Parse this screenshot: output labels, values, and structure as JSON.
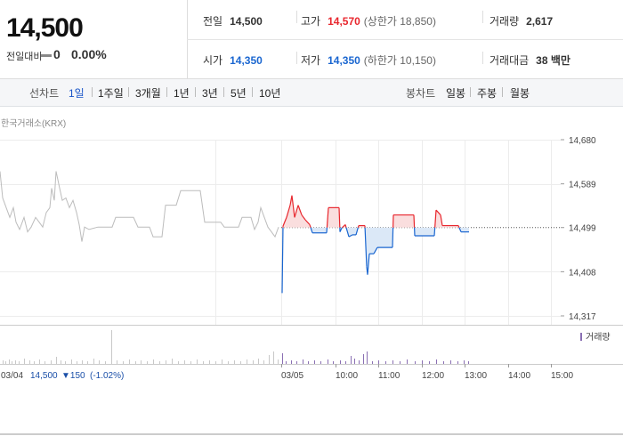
{
  "header": {
    "price": "14,500",
    "change_label": "전일대비",
    "change_value": "0",
    "change_rate": "0.00%",
    "prev_close_label": "전일",
    "prev_close": "14,500",
    "high_label": "고가",
    "high": "14,570",
    "upper_limit": "(상한가 18,850)",
    "volume_label": "거래량",
    "volume": "2,617",
    "open_label": "시가",
    "open": "14,350",
    "low_label": "저가",
    "low": "14,350",
    "lower_limit": "(하한가 10,150)",
    "amount_label": "거래대금",
    "amount": "38 백만"
  },
  "tabs": {
    "line_label": "선차트",
    "line": [
      "1일",
      "1주일",
      "3개월",
      "1년",
      "3년",
      "5년",
      "10년"
    ],
    "candle_label": "봉차트",
    "candle": [
      "일봉",
      "주봉",
      "월봉"
    ],
    "selected": "1일"
  },
  "chart_data": {
    "type": "line",
    "source_label": "한국거래소(KRX)",
    "yticks": [
      "14,680",
      "14,589",
      "14,499",
      "14,408",
      "14,317"
    ],
    "ylim": [
      14317,
      14680
    ],
    "prev_close": 14499,
    "volume_legend": "거래량",
    "x_ticks": [
      "03/05",
      "10:00",
      "11:00",
      "12:00",
      "13:00",
      "14:00",
      "15:00"
    ],
    "footer_date": "03/04",
    "footer_price": "14,500",
    "footer_change": "▼150",
    "footer_rate": "(-1.02%)",
    "colors": {
      "prev_day": "#bcbcbc",
      "up": "#e8262d",
      "down": "#1a66d0",
      "up_fill": "#fadede",
      "down_fill": "#dbe8f7"
    },
    "prev_day_series": [
      [
        0,
        14615
      ],
      [
        3,
        14560
      ],
      [
        7,
        14540
      ],
      [
        11,
        14520
      ],
      [
        15,
        14540
      ],
      [
        18,
        14510
      ],
      [
        22,
        14495
      ],
      [
        27,
        14520
      ],
      [
        31,
        14490
      ],
      [
        35,
        14500
      ],
      [
        40,
        14520
      ],
      [
        44,
        14510
      ],
      [
        48,
        14500
      ],
      [
        52,
        14530
      ],
      [
        56,
        14540
      ],
      [
        58,
        14580
      ],
      [
        61,
        14555
      ],
      [
        63,
        14615
      ],
      [
        67,
        14580
      ],
      [
        70,
        14555
      ],
      [
        74,
        14560
      ],
      [
        78,
        14540
      ],
      [
        82,
        14555
      ],
      [
        86,
        14530
      ],
      [
        89,
        14505
      ],
      [
        92,
        14470
      ],
      [
        95,
        14500
      ],
      [
        100,
        14495
      ],
      [
        110,
        14500
      ],
      [
        126,
        14500
      ],
      [
        130,
        14520
      ],
      [
        150,
        14520
      ],
      [
        155,
        14500
      ],
      [
        168,
        14500
      ],
      [
        172,
        14480
      ],
      [
        182,
        14480
      ],
      [
        186,
        14545
      ],
      [
        198,
        14545
      ],
      [
        203,
        14575
      ],
      [
        225,
        14575
      ],
      [
        230,
        14510
      ],
      [
        248,
        14510
      ],
      [
        252,
        14500
      ],
      [
        268,
        14500
      ],
      [
        272,
        14520
      ],
      [
        282,
        14520
      ],
      [
        286,
        14495
      ],
      [
        290,
        14510
      ],
      [
        293,
        14540
      ],
      [
        297,
        14520
      ],
      [
        301,
        14500
      ],
      [
        305,
        14490
      ],
      [
        309,
        14480
      ],
      [
        313,
        14500
      ]
    ],
    "today_series": [
      [
        317,
        14364
      ],
      [
        318,
        14502
      ],
      [
        322,
        14520
      ],
      [
        326,
        14545
      ],
      [
        328,
        14565
      ],
      [
        331,
        14520
      ],
      [
        335,
        14545
      ],
      [
        339,
        14525
      ],
      [
        343,
        14515
      ],
      [
        348,
        14505
      ],
      [
        351,
        14488
      ],
      [
        367,
        14488
      ],
      [
        369,
        14540
      ],
      [
        381,
        14540
      ],
      [
        382,
        14490
      ],
      [
        384,
        14498
      ],
      [
        388,
        14505
      ],
      [
        392,
        14480
      ],
      [
        396,
        14484
      ],
      [
        400,
        14484
      ],
      [
        403,
        14503
      ],
      [
        410,
        14503
      ],
      [
        412,
        14418
      ],
      [
        413,
        14402
      ],
      [
        415,
        14445
      ],
      [
        420,
        14445
      ],
      [
        424,
        14458
      ],
      [
        441,
        14458
      ],
      [
        442,
        14525
      ],
      [
        465,
        14525
      ],
      [
        466,
        14482
      ],
      [
        488,
        14482
      ],
      [
        490,
        14535
      ],
      [
        495,
        14525
      ],
      [
        497,
        14503
      ],
      [
        515,
        14503
      ],
      [
        518,
        14490
      ],
      [
        527,
        14490
      ]
    ],
    "volume_prev": [
      [
        3,
        4
      ],
      [
        6,
        3
      ],
      [
        10,
        5
      ],
      [
        13,
        3
      ],
      [
        17,
        4
      ],
      [
        21,
        3
      ],
      [
        27,
        6
      ],
      [
        33,
        4
      ],
      [
        38,
        3
      ],
      [
        44,
        5
      ],
      [
        50,
        3
      ],
      [
        57,
        4
      ],
      [
        63,
        8
      ],
      [
        68,
        4
      ],
      [
        73,
        3
      ],
      [
        80,
        5
      ],
      [
        86,
        3
      ],
      [
        92,
        4
      ],
      [
        98,
        3
      ],
      [
        105,
        6
      ],
      [
        111,
        4
      ],
      [
        118,
        3
      ],
      [
        125,
        38
      ],
      [
        131,
        4
      ],
      [
        138,
        3
      ],
      [
        145,
        5
      ],
      [
        152,
        3
      ],
      [
        158,
        4
      ],
      [
        165,
        3
      ],
      [
        172,
        5
      ],
      [
        179,
        3
      ],
      [
        186,
        4
      ],
      [
        193,
        6
      ],
      [
        200,
        3
      ],
      [
        207,
        4
      ],
      [
        214,
        3
      ],
      [
        221,
        5
      ],
      [
        228,
        3
      ],
      [
        235,
        4
      ],
      [
        242,
        3
      ],
      [
        249,
        5
      ],
      [
        256,
        3
      ],
      [
        263,
        4
      ],
      [
        270,
        3
      ],
      [
        277,
        5
      ],
      [
        284,
        4
      ],
      [
        290,
        6
      ],
      [
        296,
        4
      ],
      [
        302,
        10
      ],
      [
        307,
        14
      ],
      [
        312,
        5
      ]
    ],
    "volume_today": [
      [
        317,
        12
      ],
      [
        321,
        3
      ],
      [
        327,
        4
      ],
      [
        333,
        3
      ],
      [
        340,
        5
      ],
      [
        346,
        3
      ],
      [
        353,
        4
      ],
      [
        360,
        3
      ],
      [
        368,
        5
      ],
      [
        374,
        3
      ],
      [
        382,
        4
      ],
      [
        388,
        3
      ],
      [
        394,
        9
      ],
      [
        398,
        6
      ],
      [
        403,
        4
      ],
      [
        408,
        11
      ],
      [
        412,
        14
      ],
      [
        418,
        3
      ],
      [
        425,
        4
      ],
      [
        433,
        3
      ],
      [
        441,
        4
      ],
      [
        449,
        3
      ],
      [
        457,
        5
      ],
      [
        466,
        3
      ],
      [
        474,
        4
      ],
      [
        482,
        3
      ],
      [
        490,
        5
      ],
      [
        498,
        3
      ],
      [
        506,
        4
      ],
      [
        514,
        3
      ],
      [
        521,
        4
      ],
      [
        526,
        3
      ]
    ]
  }
}
